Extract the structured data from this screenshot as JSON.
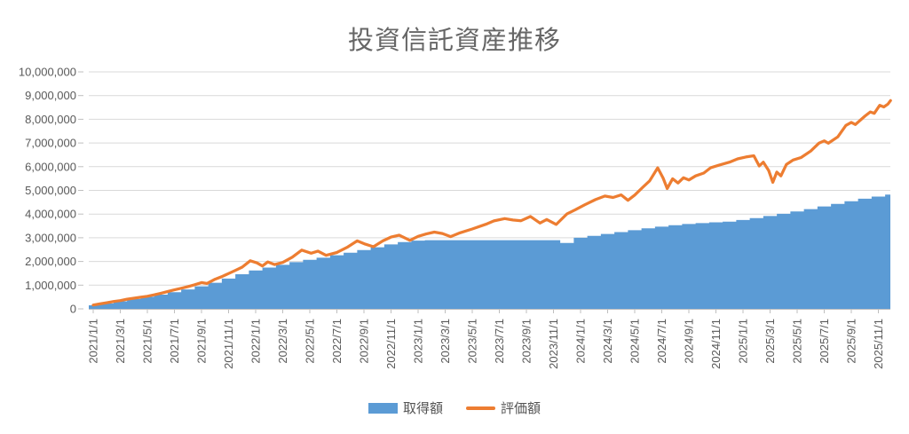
{
  "chart": {
    "title": "投資信託資産推移",
    "legend": [
      {
        "label": "取得額",
        "type": "bar",
        "color": "#5B9BD5"
      },
      {
        "label": "評価額",
        "type": "line",
        "color": "#ED7D31"
      }
    ]
  },
  "colors": {
    "blue": "#5B9BD5",
    "orange": "#ED7D31",
    "grid": "#D9D9D9",
    "axis": "#BFBFBF",
    "text": "#595959",
    "title": "#666666"
  },
  "chart_data": {
    "type": "combo",
    "title": "投資信託資産推移",
    "xlabel": "",
    "ylabel": "",
    "ylim": [
      0,
      10000000
    ],
    "grid": true,
    "legend_position": "bottom",
    "x_unit": "months since 2021/1/1",
    "x_tick_interval_months": 2,
    "x_tick_labels": [
      "2021/1/1",
      "2021/3/1",
      "2021/5/1",
      "2021/7/1",
      "2021/9/1",
      "2021/11/1",
      "2022/1/1",
      "2022/3/1",
      "2022/5/1",
      "2022/7/1",
      "2022/9/1",
      "2022/11/1",
      "2023/1/1",
      "2023/3/1",
      "2023/5/1",
      "2023/7/1",
      "2023/9/1",
      "2023/11/1",
      "2024/1/1",
      "2024/3/1",
      "2024/5/1",
      "2024/7/1",
      "2024/9/1",
      "2024/11/1",
      "2025/1/1",
      "2025/3/1",
      "2025/5/1",
      "2025/7/1",
      "2025/9/1",
      "2025/11/1"
    ],
    "y_ticks": [
      0,
      1000000,
      2000000,
      3000000,
      4000000,
      5000000,
      6000000,
      7000000,
      8000000,
      9000000,
      10000000
    ],
    "y_tick_labels": [
      "0",
      "1,000,000",
      "2,000,000",
      "3,000,000",
      "4,000,000",
      "5,000,000",
      "6,000,000",
      "7,000,000",
      "8,000,000",
      "9,000,000",
      "10,000,000"
    ],
    "series": [
      {
        "name": "取得額",
        "type": "bar",
        "color": "#5B9BD5",
        "months_start": "2021/1",
        "monthly_values": [
          150000,
          230000,
          320000,
          420000,
          510000,
          600000,
          700000,
          820000,
          950000,
          1100000,
          1280000,
          1460000,
          1620000,
          1740000,
          1860000,
          1970000,
          2070000,
          2160000,
          2260000,
          2370000,
          2480000,
          2600000,
          2720000,
          2820000,
          2880000,
          2900000,
          2900000,
          2900000,
          2900000,
          2900000,
          2900000,
          2900000,
          2900000,
          2900000,
          2900000,
          2780000,
          3000000,
          3080000,
          3160000,
          3240000,
          3320000,
          3400000,
          3470000,
          3530000,
          3580000,
          3620000,
          3650000,
          3680000,
          3750000,
          3830000,
          3920000,
          4010000,
          4110000,
          4210000,
          4320000,
          4430000,
          4540000,
          4650000,
          4740000,
          4820000
        ]
      },
      {
        "name": "評価額",
        "type": "line",
        "color": "#ED7D31",
        "points": [
          [
            0,
            160000
          ],
          [
            0.5,
            210000
          ],
          [
            1,
            260000
          ],
          [
            1.5,
            310000
          ],
          [
            2,
            350000
          ],
          [
            2.5,
            410000
          ],
          [
            3,
            450000
          ],
          [
            3.5,
            490000
          ],
          [
            4,
            530000
          ],
          [
            4.5,
            590000
          ],
          [
            5,
            660000
          ],
          [
            5.5,
            730000
          ],
          [
            6,
            800000
          ],
          [
            6.5,
            870000
          ],
          [
            7,
            940000
          ],
          [
            7.5,
            1020000
          ],
          [
            8,
            1110000
          ],
          [
            8.4,
            1070000
          ],
          [
            9,
            1250000
          ],
          [
            9.5,
            1360000
          ],
          [
            10,
            1490000
          ],
          [
            10.5,
            1620000
          ],
          [
            11,
            1760000
          ],
          [
            11.6,
            2030000
          ],
          [
            12.1,
            1940000
          ],
          [
            12.5,
            1810000
          ],
          [
            12.9,
            1980000
          ],
          [
            13.4,
            1870000
          ],
          [
            14,
            1960000
          ],
          [
            14.7,
            2180000
          ],
          [
            15.4,
            2480000
          ],
          [
            16.1,
            2350000
          ],
          [
            16.6,
            2440000
          ],
          [
            17.2,
            2260000
          ],
          [
            18,
            2380000
          ],
          [
            18.8,
            2610000
          ],
          [
            19.5,
            2870000
          ],
          [
            20.1,
            2730000
          ],
          [
            20.7,
            2620000
          ],
          [
            21.4,
            2870000
          ],
          [
            22,
            3030000
          ],
          [
            22.6,
            3110000
          ],
          [
            23.4,
            2890000
          ],
          [
            24,
            3060000
          ],
          [
            24.6,
            3160000
          ],
          [
            25.2,
            3240000
          ],
          [
            25.8,
            3180000
          ],
          [
            26.4,
            3050000
          ],
          [
            27.1,
            3210000
          ],
          [
            28,
            3370000
          ],
          [
            29,
            3570000
          ],
          [
            29.6,
            3710000
          ],
          [
            30.4,
            3810000
          ],
          [
            31,
            3750000
          ],
          [
            31.6,
            3720000
          ],
          [
            32.3,
            3900000
          ],
          [
            33,
            3620000
          ],
          [
            33.5,
            3770000
          ],
          [
            34.2,
            3560000
          ],
          [
            35,
            4010000
          ],
          [
            35.6,
            4180000
          ],
          [
            36.3,
            4390000
          ],
          [
            37.1,
            4610000
          ],
          [
            37.8,
            4760000
          ],
          [
            38.4,
            4700000
          ],
          [
            39,
            4810000
          ],
          [
            39.5,
            4580000
          ],
          [
            40,
            4800000
          ],
          [
            40.6,
            5130000
          ],
          [
            41.1,
            5400000
          ],
          [
            41.7,
            5950000
          ],
          [
            42.1,
            5520000
          ],
          [
            42.4,
            5080000
          ],
          [
            42.8,
            5490000
          ],
          [
            43.2,
            5310000
          ],
          [
            43.6,
            5530000
          ],
          [
            44,
            5440000
          ],
          [
            44.5,
            5610000
          ],
          [
            45.1,
            5730000
          ],
          [
            45.6,
            5950000
          ],
          [
            46.2,
            6060000
          ],
          [
            47,
            6190000
          ],
          [
            47.6,
            6330000
          ],
          [
            48.2,
            6410000
          ],
          [
            48.8,
            6460000
          ],
          [
            49.2,
            6030000
          ],
          [
            49.5,
            6190000
          ],
          [
            49.9,
            5830000
          ],
          [
            50.2,
            5340000
          ],
          [
            50.5,
            5770000
          ],
          [
            50.8,
            5610000
          ],
          [
            51.2,
            6090000
          ],
          [
            51.7,
            6280000
          ],
          [
            52.3,
            6390000
          ],
          [
            53,
            6660000
          ],
          [
            53.6,
            6990000
          ],
          [
            54,
            7090000
          ],
          [
            54.3,
            6990000
          ],
          [
            55,
            7260000
          ],
          [
            55.6,
            7740000
          ],
          [
            56,
            7870000
          ],
          [
            56.3,
            7780000
          ],
          [
            57,
            8130000
          ],
          [
            57.4,
            8310000
          ],
          [
            57.7,
            8250000
          ],
          [
            58.1,
            8590000
          ],
          [
            58.4,
            8520000
          ],
          [
            58.7,
            8640000
          ],
          [
            58.9,
            8790000
          ]
        ]
      }
    ]
  }
}
